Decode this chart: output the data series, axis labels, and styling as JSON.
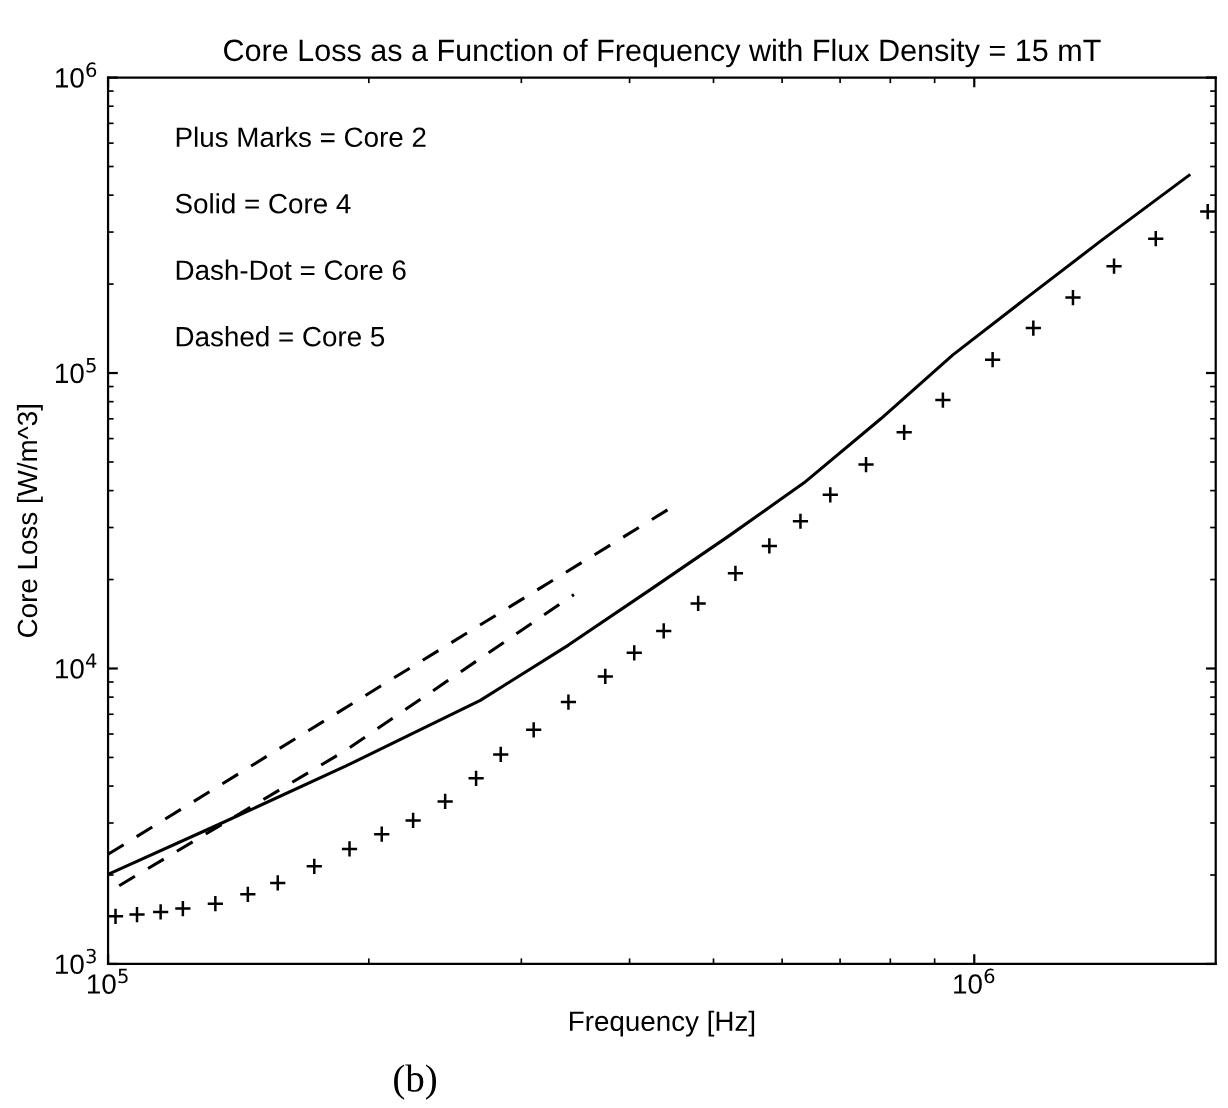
{
  "chart_data": {
    "type": "line",
    "title": "Core Loss as a Function of Frequency with Flux Density = 15 mT",
    "xlabel": "Frequency [Hz]",
    "ylabel": "Core Loss [W/m^3]",
    "log": "xy",
    "grid": false,
    "legend": false,
    "xlim": [
      100000,
      1900000
    ],
    "ylim": [
      1000,
      1000000
    ],
    "xticks": [
      {
        "value": 100000,
        "label": "10$^{5}$"
      },
      {
        "value": 1000000,
        "label": "10$^{6}$"
      }
    ],
    "yticks": [
      {
        "value": 1000,
        "label": "10$^{3}$"
      },
      {
        "value": 10000,
        "label": "10$^{4}$"
      },
      {
        "value": 100000,
        "label": "10$^{5}$"
      },
      {
        "value": 1000000,
        "label": "10$^{6}$"
      }
    ],
    "annotations": [
      "Plus Marks = Core 2",
      "Solid = Core 4",
      "Dash-Dot = Core 6",
      "Dashed = Core 5",
      "(b)"
    ],
    "series": [
      {
        "type": "scatter",
        "marker": "cross",
        "color": "#000000",
        "x": [
          102000,
          108000,
          115000,
          122000,
          133000,
          145000,
          157000,
          173000,
          190000,
          207000,
          225000,
          245000,
          266000,
          284000,
          310000,
          340000,
          375000,
          405000,
          438000,
          480000,
          530000,
          580000,
          630000,
          682000,
          750000,
          830000,
          920000,
          1050000,
          1170000,
          1300000,
          1450000,
          1620000,
          1860000
        ],
        "values": [
          1450,
          1470,
          1500,
          1540,
          1600,
          1720,
          1880,
          2140,
          2450,
          2750,
          3060,
          3550,
          4250,
          5120,
          6200,
          7700,
          9400,
          11300,
          13400,
          16600,
          21000,
          26000,
          31500,
          38700,
          49000,
          63000,
          81000,
          111000,
          142000,
          180000,
          230000,
          285000,
          352000
        ]
      },
      {
        "line_style": "solid",
        "color": "#000000",
        "x": [
          100000,
          133000,
          188000,
          269000,
          340000,
          424000,
          520000,
          636000,
          780000,
          944000,
          1150000,
          1400000,
          1770000
        ],
        "values": [
          2010,
          2930,
          4670,
          7800,
          12000,
          18600,
          28000,
          42500,
          70000,
          115000,
          180000,
          280000,
          467000
        ]
      },
      {
        "line_style": "dashed",
        "color": "#000000",
        "x": [
          100000,
          206000,
          448000
        ],
        "values": [
          2350,
          8690,
          35200
        ]
      },
      {
        "line_style": "dashed",
        "color": "#000000",
        "x": [
          103000,
          188000,
          345000
        ],
        "values": [
          1840,
          5280,
          17800
        ]
      }
    ]
  }
}
